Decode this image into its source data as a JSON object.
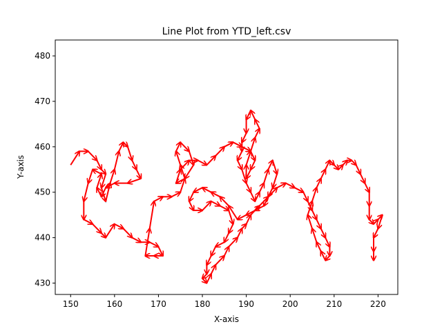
{
  "chart_data": {
    "type": "line",
    "title": "Line Plot from YTD_left.csv",
    "xlabel": "X-axis",
    "ylabel": "Y-axis",
    "xlim": [
      146.5,
      224.5
    ],
    "ylim": [
      427.5,
      483.5
    ],
    "xticks": [
      150,
      160,
      170,
      180,
      190,
      200,
      210,
      220
    ],
    "yticks": [
      430,
      440,
      450,
      460,
      470,
      480
    ],
    "grid": false,
    "legend": "none",
    "colors": {
      "line": "#1f77b4",
      "arrows": "#ff0000"
    },
    "series": [
      {
        "values": [
          [
            150,
            456
          ],
          [
            152,
            459
          ],
          [
            154,
            459
          ],
          [
            156,
            457
          ],
          [
            157,
            455
          ],
          [
            158,
            454
          ],
          [
            157,
            451
          ],
          [
            158,
            448
          ],
          [
            159,
            452
          ],
          [
            160,
            455
          ],
          [
            161,
            459
          ],
          [
            162,
            461
          ],
          [
            163,
            460
          ],
          [
            164,
            457
          ],
          [
            165,
            455
          ],
          [
            166,
            453
          ],
          [
            163,
            452
          ],
          [
            160,
            452
          ],
          [
            158,
            451
          ],
          [
            157,
            449
          ],
          [
            156,
            451
          ],
          [
            157,
            454
          ],
          [
            155,
            455
          ],
          [
            154,
            452
          ],
          [
            153,
            448
          ],
          [
            153,
            444
          ],
          [
            155,
            443
          ],
          [
            157,
            441
          ],
          [
            158,
            440
          ],
          [
            160,
            443
          ],
          [
            162,
            442
          ],
          [
            164,
            440
          ],
          [
            166,
            439
          ],
          [
            168,
            439
          ],
          [
            170,
            438
          ],
          [
            171,
            436
          ],
          [
            169,
            436
          ],
          [
            167,
            436
          ],
          [
            168,
            442
          ],
          [
            169,
            448
          ],
          [
            171,
            449
          ],
          [
            173,
            449
          ],
          [
            175,
            450
          ],
          [
            176,
            453
          ],
          [
            175,
            456
          ],
          [
            174,
            459
          ],
          [
            175,
            461
          ],
          [
            177,
            459
          ],
          [
            178,
            456
          ],
          [
            176,
            453
          ],
          [
            174,
            452
          ],
          [
            175,
            455
          ],
          [
            177,
            457
          ],
          [
            179,
            457
          ],
          [
            181,
            456
          ],
          [
            183,
            458
          ],
          [
            185,
            460
          ],
          [
            187,
            461
          ],
          [
            189,
            460
          ],
          [
            191,
            459
          ],
          [
            192,
            457
          ],
          [
            191,
            455
          ],
          [
            190,
            453
          ],
          [
            190,
            456
          ],
          [
            191,
            459
          ],
          [
            192,
            462
          ],
          [
            193,
            464
          ],
          [
            192,
            466
          ],
          [
            191,
            468
          ],
          [
            190,
            466
          ],
          [
            190,
            463
          ],
          [
            189,
            461
          ],
          [
            189,
            459
          ],
          [
            188,
            457
          ],
          [
            189,
            455
          ],
          [
            190,
            452
          ],
          [
            191,
            450
          ],
          [
            192,
            448
          ],
          [
            193,
            450
          ],
          [
            194,
            452
          ],
          [
            195,
            455
          ],
          [
            196,
            457
          ],
          [
            197,
            454
          ],
          [
            196,
            451
          ],
          [
            195,
            449
          ],
          [
            194,
            447
          ],
          [
            192,
            446
          ],
          [
            190,
            445
          ],
          [
            188,
            444
          ],
          [
            186,
            447
          ],
          [
            184,
            449
          ],
          [
            182,
            450
          ],
          [
            180,
            451
          ],
          [
            178,
            450
          ],
          [
            177,
            448
          ],
          [
            178,
            446
          ],
          [
            180,
            446
          ],
          [
            182,
            448
          ],
          [
            184,
            447
          ],
          [
            186,
            446
          ],
          [
            187,
            443
          ],
          [
            186,
            441
          ],
          [
            185,
            439
          ],
          [
            183,
            438
          ],
          [
            182,
            436
          ],
          [
            181,
            434
          ],
          [
            181,
            432
          ],
          [
            180,
            431
          ],
          [
            181,
            430
          ],
          [
            182,
            432
          ],
          [
            183,
            434
          ],
          [
            185,
            436
          ],
          [
            186,
            438
          ],
          [
            188,
            440
          ],
          [
            189,
            442
          ],
          [
            190,
            443
          ],
          [
            191,
            445
          ],
          [
            193,
            447
          ],
          [
            195,
            449
          ],
          [
            197,
            451
          ],
          [
            199,
            452
          ],
          [
            201,
            451
          ],
          [
            203,
            450
          ],
          [
            204,
            448
          ],
          [
            205,
            446
          ],
          [
            206,
            444
          ],
          [
            207,
            442
          ],
          [
            208,
            440
          ],
          [
            209,
            438
          ],
          [
            209,
            436
          ],
          [
            208,
            435
          ],
          [
            207,
            437
          ],
          [
            206,
            439
          ],
          [
            205,
            442
          ],
          [
            204,
            445
          ],
          [
            205,
            448
          ],
          [
            206,
            451
          ],
          [
            207,
            453
          ],
          [
            208,
            455
          ],
          [
            209,
            457
          ],
          [
            210,
            456
          ],
          [
            211,
            455
          ],
          [
            212,
            456
          ],
          [
            213,
            457
          ],
          [
            214,
            457
          ],
          [
            215,
            456
          ],
          [
            216,
            454
          ],
          [
            217,
            452
          ],
          [
            218,
            450
          ],
          [
            218,
            447
          ],
          [
            218,
            444
          ],
          [
            219,
            443
          ],
          [
            220,
            444
          ],
          [
            221,
            445
          ],
          [
            220,
            442
          ],
          [
            219,
            440
          ],
          [
            219,
            437
          ],
          [
            219,
            435
          ]
        ]
      }
    ]
  }
}
